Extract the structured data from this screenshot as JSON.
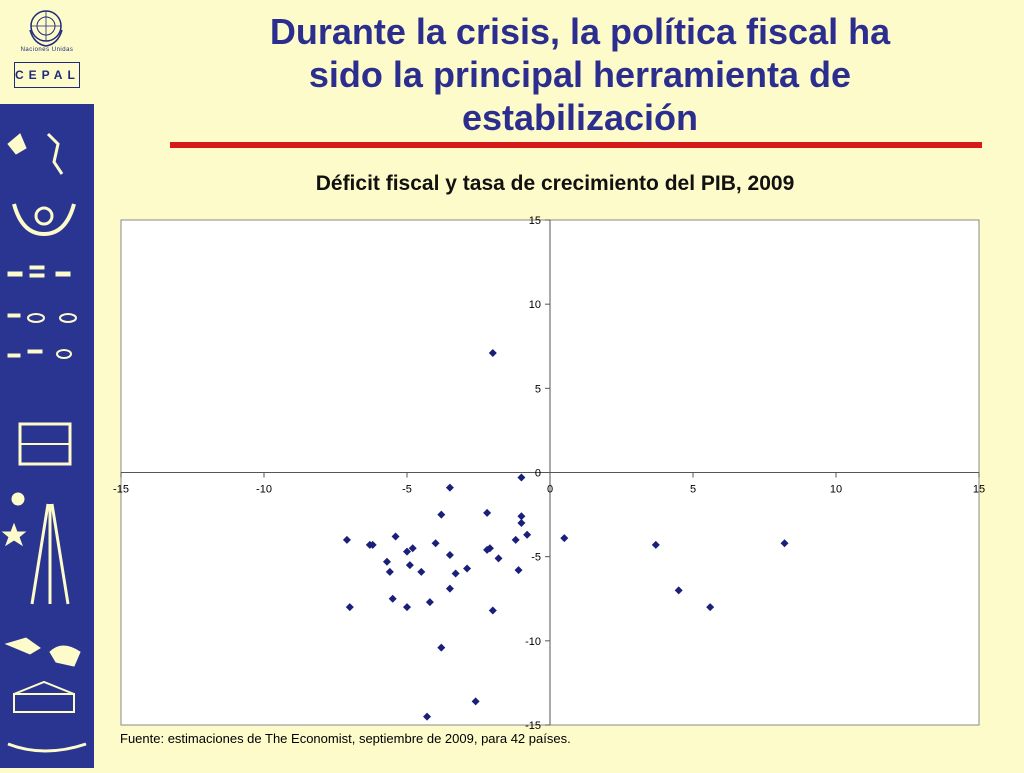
{
  "header": {
    "title_lines": [
      "Durante la crisis, la política fiscal ha",
      "sido la principal herramienta de",
      "estabilización"
    ]
  },
  "logo": {
    "un_text": "Naciones Unidas",
    "cepal_text": "CEPAL"
  },
  "colors": {
    "background": "#fdfbc9",
    "side_band": "#2a3592",
    "title": "#2b2e8f",
    "rule": "#d61a1a",
    "points": "#1a1f7a"
  },
  "chart_data": {
    "type": "scatter",
    "title": "Déficit fiscal y tasa de crecimiento del PIB, 2009",
    "xlabel": "",
    "ylabel": "",
    "xlim": [
      -15,
      15
    ],
    "ylim": [
      -15,
      15
    ],
    "x_ticks": [
      -15,
      -10,
      -5,
      0,
      5,
      10,
      15
    ],
    "y_ticks": [
      15,
      10,
      5,
      0,
      -5,
      -10,
      -15
    ],
    "grid": false,
    "legend": "none",
    "series": [
      {
        "points": [
          [
            -2.0,
            7.1
          ],
          [
            -1.0,
            -0.3
          ],
          [
            -3.5,
            -0.9
          ],
          [
            -3.8,
            -2.5
          ],
          [
            -2.2,
            -2.4
          ],
          [
            -1.0,
            -2.6
          ],
          [
            -1.0,
            -3.0
          ],
          [
            -0.8,
            -3.7
          ],
          [
            -1.2,
            -4.0
          ],
          [
            0.5,
            -3.9
          ],
          [
            3.7,
            -4.3
          ],
          [
            8.2,
            -4.2
          ],
          [
            -7.1,
            -4.0
          ],
          [
            -6.3,
            -4.3
          ],
          [
            -6.2,
            -4.3
          ],
          [
            -5.4,
            -3.8
          ],
          [
            -5.0,
            -4.7
          ],
          [
            -4.8,
            -4.5
          ],
          [
            -4.0,
            -4.2
          ],
          [
            -3.5,
            -4.9
          ],
          [
            -2.2,
            -4.6
          ],
          [
            -2.1,
            -4.5
          ],
          [
            -1.8,
            -5.1
          ],
          [
            -5.7,
            -5.3
          ],
          [
            -5.6,
            -5.9
          ],
          [
            -4.9,
            -5.5
          ],
          [
            -4.5,
            -5.9
          ],
          [
            -3.3,
            -6.0
          ],
          [
            -2.9,
            -5.7
          ],
          [
            -1.1,
            -5.8
          ],
          [
            -3.5,
            -6.9
          ],
          [
            4.5,
            -7.0
          ],
          [
            -5.5,
            -7.5
          ],
          [
            -4.2,
            -7.7
          ],
          [
            -7.0,
            -8.0
          ],
          [
            -5.0,
            -8.0
          ],
          [
            -2.0,
            -8.2
          ],
          [
            5.6,
            -8.0
          ],
          [
            -3.8,
            -10.4
          ],
          [
            -2.6,
            -13.6
          ],
          [
            -4.3,
            -14.5
          ]
        ]
      }
    ]
  },
  "footer": {
    "source": "Fuente: estimaciones de The Economist, septiembre de 2009, para 42 países."
  }
}
